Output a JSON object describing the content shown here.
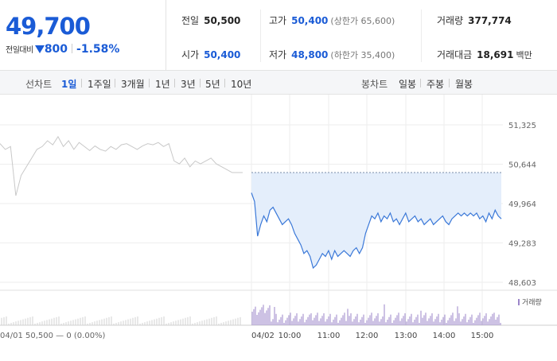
{
  "summary": {
    "price": "49,700",
    "change_label": "전일대비",
    "change_amount": "800",
    "change_rate": "-1.58%",
    "prev_close_label": "전일",
    "prev_close": "50,500",
    "open_label": "시가",
    "open": "50,400",
    "high_label": "고가",
    "high": "50,400",
    "upper_limit": "(상한가 65,600)",
    "low_label": "저가",
    "low": "48,800",
    "lower_limit": "(하한가 35,400)",
    "volume_label": "거래량",
    "volume": "377,774",
    "amount_label": "거래대금",
    "amount": "18,691",
    "amount_unit": "백만"
  },
  "line_tabs": {
    "label": "선차트",
    "items": [
      {
        "label": "1일",
        "active": true
      },
      {
        "label": "1주일",
        "active": false
      },
      {
        "label": "3개월",
        "active": false
      },
      {
        "label": "1년",
        "active": false
      },
      {
        "label": "3년",
        "active": false
      },
      {
        "label": "5년",
        "active": false
      },
      {
        "label": "10년",
        "active": false
      }
    ]
  },
  "candle_tabs": {
    "label": "봉차트",
    "items": [
      {
        "label": "일봉"
      },
      {
        "label": "주봉"
      },
      {
        "label": "월봉"
      }
    ]
  },
  "colors": {
    "accent": "#1a5bd6",
    "line": "#3a78d8",
    "fill": "#e4eefb",
    "prev_line": "#c8c8c8",
    "volume": "#9b86c9"
  },
  "chart_data": {
    "type": "line",
    "ylim": [
      48603,
      51325
    ],
    "y_ticks": [
      "51,325",
      "50,644",
      "49,964",
      "49,283",
      "48,603"
    ],
    "y_tick_values": [
      51325,
      50644,
      49964,
      49283,
      48603
    ],
    "x_ticks": [
      "04/02",
      "10:00",
      "11:00",
      "12:00",
      "13:00",
      "14:00",
      "15:00"
    ],
    "footer_left": "04/01  50,500 — 0 (0.00%)",
    "volume_legend": "거래량",
    "prev_close": 50500,
    "previous_day": {
      "date": "04/01",
      "values": [
        51000,
        50900,
        50950,
        50100,
        50450,
        50600,
        50750,
        50900,
        50950,
        51050,
        50980,
        51120,
        50950,
        51050,
        50900,
        51020,
        50950,
        50880,
        50960,
        50900,
        50870,
        50950,
        50900,
        50980,
        51000,
        50950,
        50900,
        50960,
        51000,
        50980,
        51020,
        50950,
        51000,
        50700,
        50650,
        50750,
        50600,
        50700,
        50650,
        50700,
        50750,
        50650,
        50600,
        50550,
        50500,
        50500,
        50500
      ]
    },
    "series": [
      {
        "values": [
          50150,
          50000,
          49400,
          49600,
          49750,
          49650,
          49850,
          49900,
          49800,
          49700,
          49600,
          49650,
          49700,
          49600,
          49450,
          49350,
          49250,
          49100,
          49150,
          49050,
          48850,
          48900,
          49000,
          49100,
          49050,
          49150,
          49000,
          49150,
          49050,
          49100,
          49150,
          49100,
          49050,
          49150,
          49200,
          49100,
          49200,
          49450,
          49600,
          49750,
          49700,
          49800,
          49650,
          49750,
          49700,
          49800,
          49650,
          49700,
          49600,
          49700,
          49800,
          49650,
          49700,
          49750,
          49650,
          49700,
          49600,
          49650,
          49700,
          49600,
          49650,
          49700,
          49750,
          49650,
          49600,
          49700,
          49750,
          49800,
          49750,
          49800,
          49750,
          49800,
          49750,
          49800,
          49700,
          49750,
          49650,
          49800,
          49700,
          49850,
          49750,
          49700
        ]
      }
    ]
  }
}
